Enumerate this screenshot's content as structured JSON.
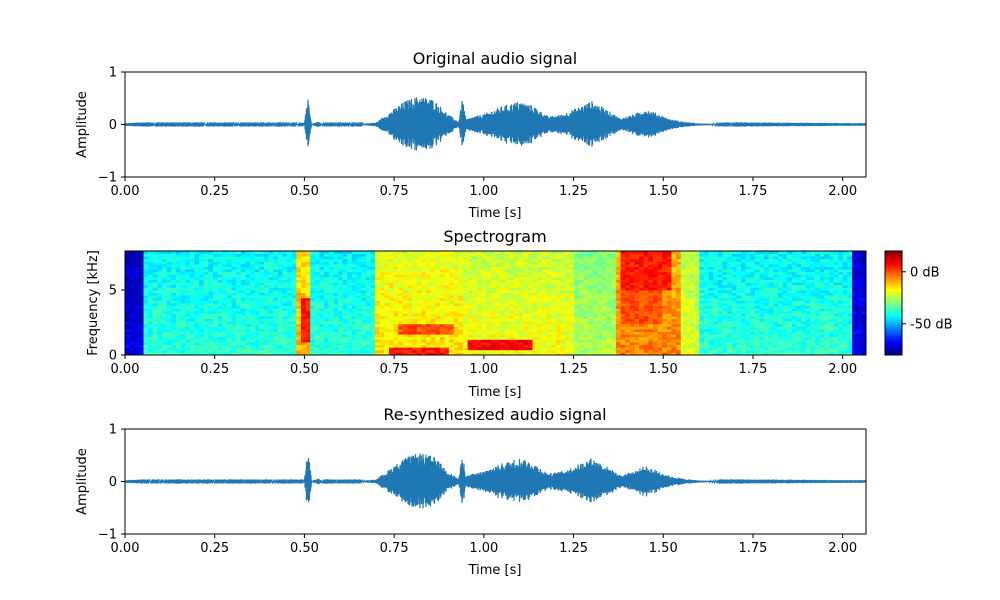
{
  "colors": {
    "waveform": "#1f77b4",
    "colormap": "jet"
  },
  "chart_data": [
    {
      "type": "line",
      "title": "Original audio signal",
      "xlabel": "Time [s]",
      "ylabel": "Amplitude",
      "xlim": [
        0,
        2.065
      ],
      "ylim": [
        -1,
        1
      ],
      "xticks": [
        "0.00",
        "0.25",
        "0.50",
        "0.75",
        "1.00",
        "1.25",
        "1.50",
        "1.75",
        "2.00"
      ],
      "yticks": [
        "−1",
        "0",
        "1"
      ],
      "envelope": [
        [
          0.0,
          0.005
        ],
        [
          0.05,
          0.01
        ],
        [
          0.5,
          0.01
        ],
        [
          0.505,
          0.35
        ],
        [
          0.51,
          0.5
        ],
        [
          0.515,
          0.35
        ],
        [
          0.52,
          0.01
        ],
        [
          0.54,
          0.06
        ],
        [
          0.55,
          0.01
        ],
        [
          0.66,
          0.01
        ],
        [
          0.7,
          0.04
        ],
        [
          0.74,
          0.25
        ],
        [
          0.78,
          0.45
        ],
        [
          0.82,
          0.55
        ],
        [
          0.86,
          0.48
        ],
        [
          0.9,
          0.2
        ],
        [
          0.93,
          0.05
        ],
        [
          0.94,
          0.5
        ],
        [
          0.945,
          0.35
        ],
        [
          0.95,
          0.1
        ],
        [
          0.97,
          0.15
        ],
        [
          1.0,
          0.2
        ],
        [
          1.05,
          0.35
        ],
        [
          1.1,
          0.45
        ],
        [
          1.14,
          0.35
        ],
        [
          1.18,
          0.15
        ],
        [
          1.22,
          0.2
        ],
        [
          1.27,
          0.35
        ],
        [
          1.3,
          0.45
        ],
        [
          1.34,
          0.3
        ],
        [
          1.38,
          0.12
        ],
        [
          1.42,
          0.2
        ],
        [
          1.45,
          0.3
        ],
        [
          1.48,
          0.22
        ],
        [
          1.52,
          0.1
        ],
        [
          1.56,
          0.05
        ],
        [
          1.6,
          0.02
        ],
        [
          1.65,
          0.01
        ],
        [
          2.065,
          0.005
        ]
      ]
    },
    {
      "type": "heatmap",
      "title": "Spectrogram",
      "xlabel": "Time [s]",
      "ylabel": "Frequency [kHz]",
      "xlim": [
        0,
        2.065
      ],
      "ylim": [
        0,
        8
      ],
      "xticks": [
        "0.00",
        "0.25",
        "0.50",
        "0.75",
        "1.00",
        "1.25",
        "1.50",
        "1.75",
        "2.00"
      ],
      "yticks": [
        "0",
        "5"
      ],
      "colorbar": {
        "range_db": [
          -80,
          20
        ],
        "ticks": [
          "0 dB",
          "-50 dB"
        ],
        "tick_values": [
          0,
          -50
        ]
      },
      "background_db": -38,
      "regions": [
        {
          "t0": 0.0,
          "t1": 0.05,
          "db": -70
        },
        {
          "t0": 2.03,
          "t1": 2.065,
          "db": -68
        },
        {
          "t0": 0.48,
          "t1": 0.52,
          "db": -10
        },
        {
          "t0": 0.7,
          "t1": 0.94,
          "db": -15
        },
        {
          "t0": 0.94,
          "t1": 1.25,
          "db": -18
        },
        {
          "t0": 1.25,
          "t1": 1.37,
          "db": -25
        },
        {
          "t0": 1.37,
          "t1": 1.55,
          "db": -5
        },
        {
          "t0": 1.55,
          "t1": 1.6,
          "db": -20
        }
      ],
      "hot_spots": [
        {
          "t0": 0.49,
          "t1": 0.51,
          "f0": 1.0,
          "f1": 4.5,
          "db": 5
        },
        {
          "t0": 0.74,
          "t1": 0.9,
          "f0": 0.0,
          "f1": 0.7,
          "db": 5
        },
        {
          "t0": 0.96,
          "t1": 1.13,
          "f0": 0.4,
          "f1": 1.3,
          "db": 8
        },
        {
          "t0": 0.76,
          "t1": 0.92,
          "f0": 1.7,
          "f1": 2.4,
          "db": 0
        },
        {
          "t0": 1.38,
          "t1": 1.52,
          "f0": 5.0,
          "f1": 8.0,
          "db": 5
        },
        {
          "t0": 1.38,
          "t1": 1.5,
          "f0": 2.5,
          "f1": 5.0,
          "db": 0
        }
      ]
    },
    {
      "type": "line",
      "title": "Re-synthesized audio signal",
      "xlabel": "Time [s]",
      "ylabel": "Amplitude",
      "xlim": [
        0,
        2.065
      ],
      "ylim": [
        -1,
        1
      ],
      "xticks": [
        "0.00",
        "0.25",
        "0.50",
        "0.75",
        "1.00",
        "1.25",
        "1.50",
        "1.75",
        "2.00"
      ],
      "yticks": [
        "−1",
        "0",
        "1"
      ],
      "envelope": [
        [
          0.0,
          0.005
        ],
        [
          0.05,
          0.01
        ],
        [
          0.5,
          0.01
        ],
        [
          0.505,
          0.35
        ],
        [
          0.51,
          0.5
        ],
        [
          0.515,
          0.35
        ],
        [
          0.52,
          0.01
        ],
        [
          0.54,
          0.06
        ],
        [
          0.55,
          0.01
        ],
        [
          0.66,
          0.01
        ],
        [
          0.7,
          0.04
        ],
        [
          0.74,
          0.25
        ],
        [
          0.78,
          0.45
        ],
        [
          0.82,
          0.55
        ],
        [
          0.86,
          0.48
        ],
        [
          0.9,
          0.2
        ],
        [
          0.93,
          0.05
        ],
        [
          0.94,
          0.5
        ],
        [
          0.945,
          0.35
        ],
        [
          0.95,
          0.1
        ],
        [
          0.97,
          0.15
        ],
        [
          1.0,
          0.2
        ],
        [
          1.05,
          0.35
        ],
        [
          1.1,
          0.45
        ],
        [
          1.14,
          0.35
        ],
        [
          1.18,
          0.15
        ],
        [
          1.22,
          0.2
        ],
        [
          1.27,
          0.35
        ],
        [
          1.3,
          0.45
        ],
        [
          1.34,
          0.3
        ],
        [
          1.38,
          0.12
        ],
        [
          1.42,
          0.2
        ],
        [
          1.45,
          0.3
        ],
        [
          1.48,
          0.22
        ],
        [
          1.52,
          0.1
        ],
        [
          1.56,
          0.05
        ],
        [
          1.6,
          0.02
        ],
        [
          1.65,
          0.01
        ],
        [
          2.065,
          0.005
        ]
      ]
    }
  ]
}
